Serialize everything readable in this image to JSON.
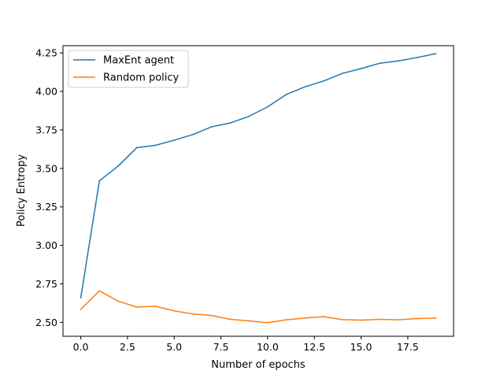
{
  "chart_data": {
    "type": "line",
    "title": "",
    "xlabel": "Number of epochs",
    "ylabel": "Policy Entropy",
    "xlim": [
      -0.95,
      19.95
    ],
    "ylim": [
      2.41,
      4.297
    ],
    "xticks": [
      0.0,
      2.5,
      5.0,
      7.5,
      10.0,
      12.5,
      15.0,
      17.5
    ],
    "xtick_labels": [
      "0.0",
      "2.5",
      "5.0",
      "7.5",
      "10.0",
      "12.5",
      "15.0",
      "17.5"
    ],
    "yticks": [
      2.5,
      2.75,
      3.0,
      3.25,
      3.5,
      3.75,
      4.0,
      4.25
    ],
    "ytick_labels": [
      "2.50",
      "2.75",
      "3.00",
      "3.25",
      "3.50",
      "3.75",
      "4.00",
      "4.25"
    ],
    "grid": false,
    "legend_position": "top-left",
    "x": [
      0,
      1,
      2,
      3,
      4,
      5,
      6,
      7,
      8,
      9,
      10,
      11,
      12,
      13,
      14,
      15,
      16,
      17,
      18,
      19
    ],
    "series": [
      {
        "name": "MaxEnt agent",
        "color": "#1f77b4",
        "values": [
          2.66,
          3.42,
          3.515,
          3.635,
          3.65,
          3.683,
          3.72,
          3.77,
          3.795,
          3.838,
          3.9,
          3.98,
          4.03,
          4.068,
          4.117,
          4.148,
          4.183,
          4.198,
          4.22,
          4.245
        ]
      },
      {
        "name": "Random policy",
        "color": "#ff7f0e",
        "values": [
          2.585,
          2.705,
          2.638,
          2.6,
          2.605,
          2.575,
          2.555,
          2.545,
          2.52,
          2.51,
          2.498,
          2.517,
          2.528,
          2.537,
          2.518,
          2.515,
          2.52,
          2.517,
          2.525,
          2.528
        ]
      }
    ]
  }
}
